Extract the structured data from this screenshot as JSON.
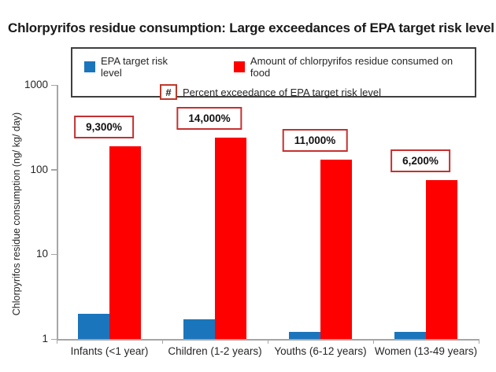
{
  "title": "Chlorpyrifos residue consumption: Large exceedances of EPA target risk level",
  "legend": {
    "items": [
      {
        "label": "EPA target risk level",
        "color": "#1b75bc"
      },
      {
        "label": "Amount of chlorpyrifos residue consumed on food",
        "color": "#fe0000"
      }
    ],
    "hash_symbol": "#",
    "hash_label": "Percent exceedance of EPA target risk level"
  },
  "chart_data": {
    "type": "bar",
    "scale": "log",
    "title": "Chlorpyrifos residue consumption: Large exceedances of EPA target risk level",
    "categories": [
      "Infants (<1 year)",
      "Children (1-2 years)",
      "Youths (6-12 years)",
      "Women (13-49 years)"
    ],
    "series": [
      {
        "name": "EPA target risk level",
        "color": "#1b75bc",
        "values": [
          2.0,
          1.7,
          1.2,
          1.2
        ]
      },
      {
        "name": "Amount of chlorpyrifos residue consumed on food",
        "color": "#fe0000",
        "values": [
          190,
          240,
          130,
          75
        ]
      }
    ],
    "exceedance_labels": [
      "9,300%",
      "14,000%",
      "11,000%",
      "6,200%"
    ],
    "xlabel": "",
    "ylabel": "Chlorpyrifos residue consumption (ng/ kg/ day)",
    "yticks": [
      1,
      10,
      100,
      1000
    ],
    "ylim": [
      1,
      1000
    ],
    "grid": false,
    "legend_position": "top"
  }
}
